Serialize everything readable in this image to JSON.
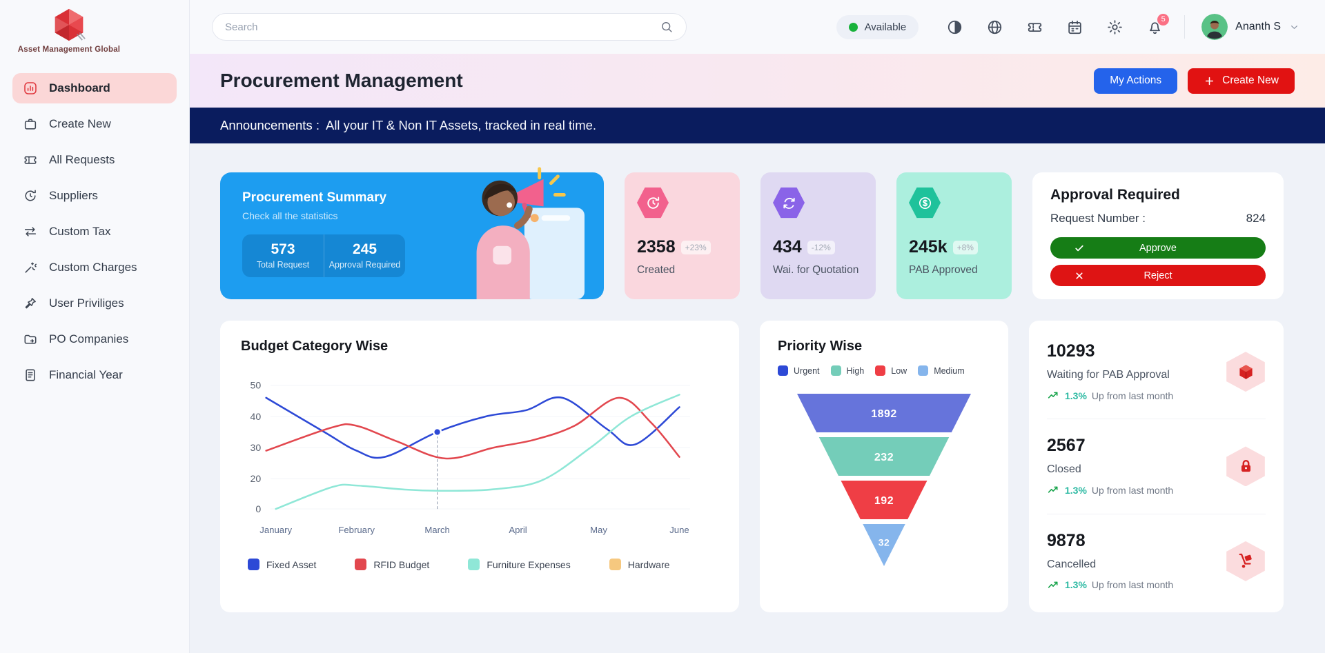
{
  "brand": {
    "name": "Asset Management Global"
  },
  "topbar": {
    "search_placeholder": "Search",
    "status": "Available",
    "icons": [
      "theme",
      "globe",
      "ticket",
      "calendar",
      "settings",
      "notifications"
    ],
    "notification_count": "5",
    "user": {
      "name": "Ananth S"
    }
  },
  "sidebar": {
    "items": [
      {
        "label": "Dashboard",
        "icon": "dashboard",
        "active": true
      },
      {
        "label": "Create New",
        "icon": "briefcase"
      },
      {
        "label": "All Requests",
        "icon": "ticket"
      },
      {
        "label": "Suppliers",
        "icon": "clock-refresh"
      },
      {
        "label": "Custom Tax",
        "icon": "swap-arrows"
      },
      {
        "label": "Custom Charges",
        "icon": "wand"
      },
      {
        "label": "User Priviliges",
        "icon": "pin"
      },
      {
        "label": "PO Companies",
        "icon": "folder"
      },
      {
        "label": "Financial Year",
        "icon": "file"
      }
    ]
  },
  "header": {
    "title": "Procurement Management",
    "buttons": {
      "my_actions": "My Actions",
      "create_new": "Create New"
    },
    "my_actions_color": "#2463EB",
    "create_new_color": "#E11212"
  },
  "announcement": {
    "label": "Announcements :",
    "text": "All your IT & Non IT Assets, tracked in real time."
  },
  "summary_card": {
    "title": "Procurement Summary",
    "subtitle": "Check all the statistics",
    "bg": "#1D9DF0",
    "stats": [
      {
        "value": "573",
        "label": "Total Request"
      },
      {
        "value": "245",
        "label": "Approval Required"
      }
    ]
  },
  "stat_cards": [
    {
      "value": "2358",
      "delta": "+23%",
      "label": "Created",
      "bg": "#FAD7DE",
      "hex": "#F2618D",
      "icon": "history"
    },
    {
      "value": "434",
      "delta": "-12%",
      "label": "Wai. for Quotation",
      "bg": "#DFD9F2",
      "hex": "#8A63E8",
      "icon": "sync"
    },
    {
      "value": "245k",
      "delta": "+8%",
      "label": "PAB Approved",
      "bg": "#ACEFDE",
      "hex": "#1FC29B",
      "icon": "dollar"
    }
  ],
  "approval_card": {
    "title": "Approval Required",
    "request_label": "Request Number :",
    "request_number": "824",
    "approve_label": "Approve",
    "reject_label": "Reject",
    "approve_color": "#167D16",
    "reject_color": "#DE1414"
  },
  "chart_data": [
    {
      "type": "line",
      "title": "Budget Category Wise",
      "x_ticks": [
        "January",
        "February",
        "March",
        "April",
        "May",
        "June"
      ],
      "y_ticks": [
        0,
        20,
        30,
        40,
        50
      ],
      "ylim": [
        0,
        50
      ],
      "grid": "faint-horizontal",
      "legend_position": "bottom",
      "series": [
        {
          "name": "Fixed Asset",
          "color": "#2D49D6",
          "points": [
            [
              -0.12,
              46
            ],
            [
              0.6,
              35
            ],
            [
              1,
              29
            ],
            [
              1.35,
              27
            ],
            [
              2,
              35
            ],
            [
              2.6,
              40
            ],
            [
              3.1,
              42
            ],
            [
              3.55,
              46
            ],
            [
              4.1,
              36
            ],
            [
              4.45,
              31
            ],
            [
              5,
              43
            ]
          ]
        },
        {
          "name": "RFID Budget",
          "color": "#E2474E",
          "points": [
            [
              -0.12,
              29
            ],
            [
              0.7,
              36.5
            ],
            [
              1,
              37
            ],
            [
              1.5,
              32
            ],
            [
              2.1,
              26.5
            ],
            [
              2.7,
              30
            ],
            [
              3.2,
              32.5
            ],
            [
              3.7,
              37
            ],
            [
              4.25,
              46
            ],
            [
              4.65,
              38
            ],
            [
              5,
              27
            ]
          ]
        },
        {
          "name": "Furniture Expenses",
          "color": "#8FE7D7",
          "points": [
            [
              0,
              0
            ],
            [
              0.7,
              14.5
            ],
            [
              1,
              15.5
            ],
            [
              1.6,
              12.8
            ],
            [
              2.1,
              12
            ],
            [
              2.7,
              13
            ],
            [
              3.3,
              19
            ],
            [
              3.9,
              30
            ],
            [
              4.4,
              40
            ],
            [
              5,
              47
            ]
          ]
        },
        {
          "name": "Hardware",
          "color": "#F6C87F",
          "points": []
        }
      ],
      "marker": {
        "x": 2,
        "y": 35,
        "series": "Fixed Asset",
        "color": "#2D49D6"
      }
    },
    {
      "type": "funnel",
      "title": "Priority Wise",
      "legend": [
        {
          "label": "Urgent",
          "color": "#2D49D6"
        },
        {
          "label": "High",
          "color": "#74CDB9"
        },
        {
          "label": "Low",
          "color": "#EF3E45"
        },
        {
          "label": "Medium",
          "color": "#85B5EC"
        }
      ],
      "segments": [
        {
          "value": 1892,
          "color": "#6674DB"
        },
        {
          "value": 232,
          "color": "#74CDB9"
        },
        {
          "value": 192,
          "color": "#EF3E45"
        },
        {
          "value": 32,
          "color": "#85B5EC"
        }
      ]
    }
  ],
  "right_stats": [
    {
      "value": "10293",
      "label": "Waiting for PAB Approval",
      "trend_value": "1.3%",
      "trend_text": "Up from last month",
      "icon": "cube"
    },
    {
      "value": "2567",
      "label": "Closed",
      "trend_value": "1.3%",
      "trend_text": "Up from last month",
      "icon": "lock"
    },
    {
      "value": "9878",
      "label": "Cancelled",
      "trend_value": "1.3%",
      "trend_text": "Up from last month",
      "icon": "trolley"
    }
  ]
}
